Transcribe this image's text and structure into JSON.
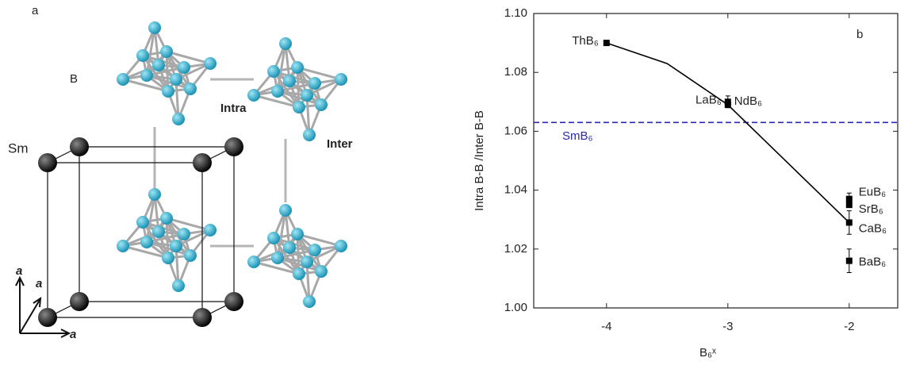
{
  "panel_a": {
    "panel_label": "a",
    "boron_label": "B",
    "intra_label": "Intra",
    "inter_label": "Inter",
    "sm_label": "Sm",
    "axis_labels": [
      "a",
      "a",
      "a"
    ]
  },
  "chart_data": {
    "type": "scatter",
    "panel_label": "b",
    "x_label": "B₆ˣ",
    "y_label": "Intra B-B /Inter B-B",
    "xlim": [
      -4.6,
      -1.6
    ],
    "ylim": [
      1.0,
      1.1
    ],
    "xticks": [
      -4,
      -3,
      -2
    ],
    "yticks": [
      {
        "value": 1.0,
        "label": "1.00"
      },
      {
        "value": 1.02,
        "label": "1.02"
      },
      {
        "value": 1.04,
        "label": "1.04"
      },
      {
        "value": 1.06,
        "label": "1.06"
      },
      {
        "value": 1.08,
        "label": "1.08"
      },
      {
        "value": 1.1,
        "label": "1.10"
      }
    ],
    "labels": [
      "ThB₆",
      "LaB₆",
      "NdB₆",
      "EuB₆",
      "SrB₆",
      "CaB₆",
      "BaB₆"
    ],
    "x": [
      -4,
      -3,
      -3,
      -2,
      -2,
      -2,
      -2
    ],
    "values": [
      1.09,
      1.07,
      1.069,
      1.037,
      1.035,
      1.029,
      1.016
    ],
    "errors": [
      null,
      0.002,
      null,
      0.002,
      null,
      0.004,
      0.004
    ],
    "color": "#000000",
    "fit": {
      "x": [
        -4,
        -3.5,
        -3,
        -2.5,
        -2
      ],
      "values": [
        1.09,
        1.083,
        1.069,
        1.049,
        1.029
      ],
      "color": "#000000"
    },
    "reference_line": {
      "value": 1.063,
      "label": "SmB₆",
      "color": "#2828b4"
    }
  }
}
